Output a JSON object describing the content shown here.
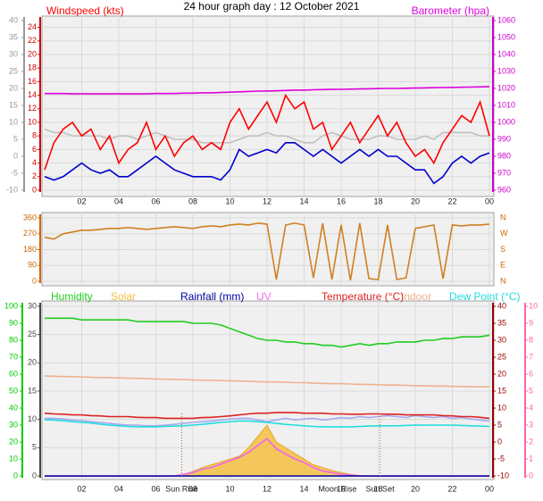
{
  "title": "24 hour graph day : 12 October 2021",
  "chart_data": [
    {
      "type": "line",
      "x": [
        0,
        0.5,
        1,
        1.5,
        2,
        2.5,
        3,
        3.5,
        4,
        4.5,
        5,
        5.5,
        6,
        6.5,
        7,
        7.5,
        8,
        8.5,
        9,
        9.5,
        10,
        10.5,
        11,
        11.5,
        12,
        12.5,
        13,
        13.5,
        14,
        14.5,
        15,
        15.5,
        16,
        16.5,
        17,
        17.5,
        18,
        18.5,
        19,
        19.5,
        20,
        20.5,
        21,
        21.5,
        22,
        22.5,
        23,
        23.5,
        24
      ],
      "xlim": [
        0,
        24
      ],
      "xticks": [
        {
          "value": 2,
          "label": "02"
        },
        {
          "value": 4,
          "label": "04"
        },
        {
          "value": 6,
          "label": "06"
        },
        {
          "value": 8,
          "label": "08"
        },
        10,
        12,
        14,
        16,
        18,
        20,
        22,
        {
          "value": 24,
          "label": "00"
        }
      ],
      "ylim": [
        0,
        25
      ],
      "yticks": [
        0,
        2,
        4,
        6,
        8,
        10,
        12,
        14,
        16,
        18,
        20,
        22,
        24
      ],
      "y2lim": [
        960,
        1060
      ],
      "y2ticks": [
        960,
        970,
        980,
        990,
        1000,
        1010,
        1020,
        1030,
        1040,
        1050,
        1060
      ],
      "y3lim": [
        -10,
        40
      ],
      "y3ticks": [
        -10,
        -5,
        0,
        5,
        10,
        15,
        20,
        25,
        30,
        35,
        40
      ],
      "axis_colors": {
        "y": "#cc0000",
        "y2": "#cc00cc",
        "y3": "#999999"
      },
      "grid": true,
      "series": [
        {
          "color": "#c0c0c0",
          "axis": "y",
          "values": [
            9,
            8.5,
            8.5,
            8,
            8,
            8,
            8,
            7.5,
            8,
            8,
            7.5,
            8,
            8.5,
            8,
            7.5,
            7.5,
            7.5,
            7,
            7,
            7,
            7,
            7.5,
            8,
            8,
            8.5,
            8,
            8,
            7.5,
            7,
            7,
            8,
            8.5,
            8,
            7.5,
            7.5,
            7.5,
            8,
            8,
            7.5,
            7.5,
            7.5,
            8,
            7.5,
            8.5,
            8.5,
            8.5,
            8.5,
            8,
            8
          ]
        },
        {
          "name": "Windspeed (kts)",
          "color": "#ff0000",
          "axis": "y",
          "values": [
            3,
            7,
            9,
            10,
            8,
            9,
            6,
            8,
            4,
            6,
            7,
            10,
            6,
            8,
            5,
            7,
            8,
            6,
            7,
            6,
            10,
            12,
            9,
            11,
            13,
            10,
            14,
            12,
            13,
            9,
            10,
            6,
            8,
            10,
            7,
            9,
            11,
            8,
            10,
            7,
            5,
            6,
            4,
            7,
            9,
            11,
            10,
            13,
            8
          ]
        },
        {
          "color": "#0000cc",
          "axis": "y",
          "values": [
            2,
            1.5,
            2,
            3,
            4,
            3,
            2.5,
            3,
            2,
            2,
            3,
            4,
            5,
            4,
            3,
            2.5,
            2,
            2,
            2,
            1.5,
            3,
            6,
            5,
            5.5,
            6,
            5.5,
            7,
            7,
            6,
            5,
            6,
            5,
            4,
            5,
            6,
            5,
            6,
            5,
            5,
            4,
            3,
            3,
            1,
            2,
            4,
            5,
            4,
            5,
            5.5
          ]
        },
        {
          "name": "Barometer (hpa)",
          "color": "#dd00dd",
          "axis": "y2",
          "values": [
            1017,
            1017,
            1017,
            1016.8,
            1016.8,
            1016.8,
            1016.8,
            1016.8,
            1016.8,
            1016.8,
            1016.8,
            1016.8,
            1017,
            1017,
            1017,
            1017.2,
            1017.2,
            1017.4,
            1017.4,
            1017.6,
            1017.8,
            1018,
            1018.2,
            1018.4,
            1018.5,
            1018.6,
            1018.8,
            1019,
            1019,
            1019.2,
            1019.3,
            1019.4,
            1019.5,
            1019.6,
            1019.7,
            1019.8,
            1019.9,
            1020,
            1020,
            1020.1,
            1020.2,
            1020.3,
            1020.4,
            1020.5,
            1020.6,
            1020.7,
            1020.8,
            1020.9,
            1021
          ]
        }
      ]
    },
    {
      "type": "line",
      "x": [
        0,
        0.5,
        1,
        1.5,
        2,
        2.5,
        3,
        3.5,
        4,
        4.5,
        5,
        5.5,
        6,
        6.5,
        7,
        7.5,
        8,
        8.5,
        9,
        9.5,
        10,
        10.5,
        11,
        11.5,
        12,
        12.5,
        13,
        13.5,
        14,
        14.5,
        15,
        15.5,
        16,
        16.5,
        17,
        17.5,
        18,
        18.5,
        19,
        19.5,
        20,
        20.5,
        21,
        21.5,
        22,
        22.5,
        23,
        23.5,
        24
      ],
      "xlim": [
        0,
        24
      ],
      "xticks": [
        2,
        4,
        6,
        8,
        10,
        12,
        14,
        16,
        18,
        20,
        22,
        24
      ],
      "ylim": [
        0,
        360
      ],
      "yticks": [
        0,
        90,
        180,
        270,
        360
      ],
      "compass": [
        "N",
        "E",
        "S",
        "W",
        "N"
      ],
      "axis_colors": {
        "y": "#cc6600"
      },
      "grid": true,
      "series": [
        {
          "color": "#d08020",
          "axis": "y",
          "values": [
            250,
            240,
            270,
            280,
            290,
            290,
            295,
            300,
            300,
            305,
            300,
            295,
            300,
            305,
            310,
            305,
            300,
            310,
            315,
            310,
            320,
            325,
            320,
            330,
            325,
            10,
            320,
            330,
            320,
            20,
            330,
            10,
            320,
            5,
            330,
            15,
            10,
            320,
            10,
            20,
            300,
            310,
            320,
            15,
            320,
            315,
            320,
            320,
            325
          ]
        }
      ]
    },
    {
      "type": "line",
      "x": [
        0,
        0.5,
        1,
        1.5,
        2,
        2.5,
        3,
        3.5,
        4,
        4.5,
        5,
        5.5,
        6,
        6.5,
        7,
        7.5,
        8,
        8.5,
        9,
        9.5,
        10,
        10.5,
        11,
        11.5,
        12,
        12.5,
        13,
        13.5,
        14,
        14.5,
        15,
        15.5,
        16,
        16.5,
        17,
        17.5,
        18,
        18.5,
        19,
        19.5,
        20,
        20.5,
        21,
        21.5,
        22,
        22.5,
        23,
        23.5,
        24
      ],
      "xlim": [
        0,
        24
      ],
      "xticks": [
        {
          "value": 2,
          "label": "02"
        },
        {
          "value": 4,
          "label": "04"
        },
        {
          "value": 6,
          "label": "06"
        },
        {
          "value": 8,
          "label": "08"
        },
        10,
        12,
        14,
        16,
        18,
        20,
        22,
        {
          "value": 24,
          "label": "00"
        }
      ],
      "ylim": [
        0,
        30
      ],
      "yticks": [
        0,
        5,
        10,
        15,
        20,
        25,
        30
      ],
      "y2lim": [
        -10,
        40
      ],
      "y2ticks": [
        -10,
        -5,
        0,
        5,
        10,
        15,
        20,
        25,
        30,
        35,
        40
      ],
      "y3lim": [
        0,
        100
      ],
      "y3ticks": [
        0,
        10,
        20,
        30,
        40,
        50,
        60,
        70,
        80,
        90,
        100
      ],
      "y4lim": [
        0,
        10
      ],
      "y4ticks": [
        0,
        1,
        2,
        3,
        4,
        5,
        6,
        7,
        8,
        9,
        10
      ],
      "axis_colors": {
        "y": "#444444",
        "y2": "#990000",
        "y3": "#00cc00",
        "y4": "#ff66aa"
      },
      "grid": true,
      "series": [
        {
          "name": "Solar",
          "color": "#f5c040",
          "style": "area",
          "axis": "y",
          "values": [
            0,
            0,
            0,
            0,
            0,
            0,
            0,
            0,
            0,
            0,
            0,
            0,
            0,
            0,
            0,
            0.3,
            0.8,
            1.5,
            2,
            2.5,
            3,
            3.5,
            5,
            7,
            9,
            6,
            5,
            4,
            3,
            2,
            1.5,
            1,
            0.6,
            0.3,
            0.1,
            0,
            0,
            0,
            0,
            0,
            0,
            0,
            0,
            0,
            0,
            0,
            0,
            0,
            0
          ]
        },
        {
          "name": "UV",
          "color": "#ee66ee",
          "axis": "y4",
          "values": [
            0,
            0,
            0,
            0,
            0,
            0,
            0,
            0,
            0,
            0,
            0,
            0,
            0,
            0,
            0,
            0.1,
            0.2,
            0.4,
            0.5,
            0.7,
            0.9,
            1.1,
            1.4,
            1.8,
            2.2,
            1.6,
            1.3,
            1,
            0.8,
            0.5,
            0.3,
            0.2,
            0.1,
            0.05,
            0,
            0,
            0,
            0,
            0,
            0,
            0,
            0,
            0,
            0,
            0,
            0,
            0,
            0,
            0
          ]
        },
        {
          "name": "Rainfall (mm)",
          "color": "#000099",
          "axis": "y",
          "values": [
            0,
            0,
            0,
            0,
            0,
            0,
            0,
            0,
            0,
            0,
            0,
            0,
            0,
            0,
            0,
            0,
            0,
            0,
            0,
            0,
            0,
            0,
            0,
            0,
            0,
            0,
            0,
            0,
            0,
            0,
            0,
            0,
            0,
            0,
            0,
            0,
            0,
            0,
            0,
            0,
            0,
            0,
            0,
            0,
            0,
            0,
            0,
            0,
            0
          ]
        },
        {
          "name": "Indoor",
          "color": "#f0b090",
          "axis": "y2",
          "values": [
            19.5,
            19.4,
            19.3,
            19.3,
            19.2,
            19.1,
            19,
            19,
            18.9,
            18.8,
            18.8,
            18.7,
            18.6,
            18.5,
            18.5,
            18.4,
            18.3,
            18.2,
            18.2,
            18.1,
            18,
            18,
            17.9,
            17.8,
            17.7,
            17.7,
            17.6,
            17.5,
            17.5,
            17.4,
            17.3,
            17.2,
            17.2,
            17.1,
            17,
            17,
            16.9,
            16.8,
            16.8,
            16.7,
            16.6,
            16.6,
            16.5,
            16.5,
            16.4,
            16.4,
            16.3,
            16.3,
            16.3
          ]
        },
        {
          "name": "Humidity",
          "color": "#22cc22",
          "axis": "y3",
          "values": [
            93,
            93,
            93,
            93,
            92,
            92,
            92,
            92,
            92,
            92,
            91,
            91,
            91,
            91,
            91,
            91,
            90,
            90,
            90,
            89,
            87,
            85,
            83,
            81,
            80,
            80,
            79,
            79,
            78,
            78,
            77,
            77,
            76,
            77,
            78,
            77,
            78,
            78,
            79,
            79,
            79,
            80,
            80,
            81,
            81,
            82,
            82,
            82,
            83
          ]
        },
        {
          "color": "#a8a8f0",
          "axis": "y2",
          "values": [
            7,
            7,
            6.8,
            6.5,
            6.3,
            6,
            5.8,
            5.5,
            5.2,
            5,
            5,
            4.8,
            4.8,
            5,
            5.2,
            5.5,
            5.8,
            6,
            6.2,
            6.5,
            6.8,
            7,
            7,
            6.5,
            6,
            6.5,
            7,
            6.5,
            6.8,
            7,
            6.5,
            6.8,
            7.2,
            7,
            7.5,
            7.2,
            7.5,
            7.8,
            7.5,
            7.2,
            7.8,
            7.5,
            7.2,
            7.5,
            7,
            7.2,
            6.8,
            6.5,
            6.2
          ]
        },
        {
          "name": "Dew Point (°C)",
          "color": "#22dddd",
          "axis": "y2",
          "values": [
            6.6,
            6.5,
            6.3,
            6,
            5.8,
            5.6,
            5.3,
            5,
            4.8,
            4.6,
            4.5,
            4.5,
            4.5,
            4.6,
            4.7,
            4.8,
            5,
            5.2,
            5.5,
            5.8,
            6,
            6.2,
            6.2,
            6,
            5.8,
            5.5,
            5.2,
            5,
            4.8,
            4.6,
            4.5,
            4.5,
            4.5,
            4.5,
            4.6,
            4.7,
            4.8,
            4.8,
            4.8,
            4.9,
            5,
            5,
            5,
            5,
            5,
            4.9,
            4.8,
            4.7,
            4.6
          ]
        },
        {
          "name": "Temperature (°C)",
          "color": "#dd2222",
          "axis": "y2",
          "values": [
            8.5,
            8.3,
            8.2,
            8,
            8,
            7.8,
            7.7,
            7.5,
            7.5,
            7.5,
            7.3,
            7.2,
            7.2,
            7,
            7,
            7,
            7,
            7.2,
            7.3,
            7.5,
            7.7,
            8,
            8.3,
            8.5,
            8.5,
            8.7,
            8.7,
            8.7,
            8.5,
            8.5,
            8.5,
            8.3,
            8.3,
            8.2,
            8.2,
            8.3,
            8.3,
            8.2,
            8.2,
            8,
            8,
            8,
            8,
            7.8,
            7.7,
            7.5,
            7.5,
            7.3,
            7
          ]
        }
      ],
      "annotations": [
        {
          "text": "Sun Rise",
          "x": 7.4,
          "line": true
        },
        {
          "text": "Moon Rise",
          "x": 15.8,
          "line": false
        },
        {
          "text": "Sun Set",
          "x": 18.1,
          "line": true
        }
      ]
    }
  ]
}
